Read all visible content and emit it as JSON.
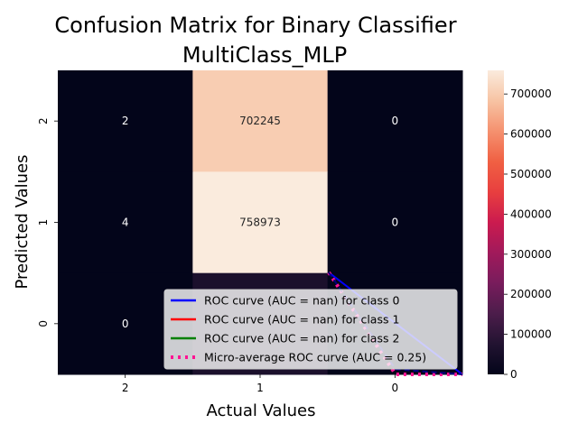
{
  "chart_data": {
    "type": "heatmap",
    "title": [
      "Confusion Matrix for Binary Classifier",
      "MultiClass_MLP"
    ],
    "xlabel": "Actual Values",
    "ylabel": "Predicted Values",
    "x_categories": [
      "2",
      "1",
      "0"
    ],
    "y_categories": [
      "2",
      "1",
      "0"
    ],
    "values": [
      [
        2,
        702245,
        0
      ],
      [
        4,
        758973,
        0
      ],
      [
        0,
        58000,
        0
      ]
    ],
    "cell_labels": [
      [
        "2",
        "702245",
        "0"
      ],
      [
        "4",
        "758973",
        "0"
      ],
      [
        "0",
        "",
        ""
      ]
    ],
    "colorbar": {
      "min": 0,
      "max": 758973,
      "ticks": [
        0,
        100000,
        200000,
        300000,
        400000,
        500000,
        600000,
        700000
      ]
    },
    "legend": {
      "placement": "lower-right",
      "entries": [
        {
          "label": "ROC curve (AUC = nan) for class 0",
          "color": "#0000ff",
          "style": "solid"
        },
        {
          "label": "ROC curve (AUC = nan) for class 1",
          "color": "#ff0000",
          "style": "solid"
        },
        {
          "label": "ROC curve (AUC = nan) for class 2",
          "color": "#008000",
          "style": "solid"
        },
        {
          "label": "Micro-average ROC curve (AUC = 0.25)",
          "color": "#ff1493",
          "style": "dotted"
        }
      ]
    },
    "roc_overlay": {
      "class0_line": [
        [
          0.0,
          1.0
        ],
        [
          1.0,
          0.0
        ]
      ],
      "micro_average": [
        [
          0.0,
          1.0
        ],
        [
          0.5,
          0.0
        ],
        [
          1.0,
          0.0
        ]
      ]
    }
  }
}
